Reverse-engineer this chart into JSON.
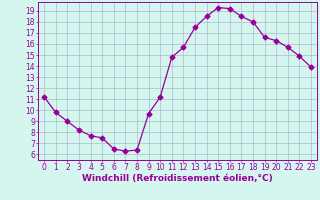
{
  "x": [
    0,
    1,
    2,
    3,
    4,
    5,
    6,
    7,
    8,
    9,
    10,
    11,
    12,
    13,
    14,
    15,
    16,
    17,
    18,
    19,
    20,
    21,
    22,
    23
  ],
  "y": [
    11.2,
    9.8,
    9.0,
    8.2,
    7.7,
    7.5,
    6.5,
    6.3,
    6.4,
    9.7,
    11.2,
    14.8,
    15.7,
    17.5,
    18.5,
    19.3,
    19.2,
    18.5,
    18.0,
    16.6,
    16.3,
    15.7,
    14.9,
    13.9
  ],
  "line_color": "#990099",
  "marker": "D",
  "marker_size": 2.5,
  "bg_color": "#d5f5ef",
  "grid_color": "#aabbcc",
  "xlabel": "Windchill (Refroidissement éolien,°C)",
  "ylabel_ticks": [
    6,
    7,
    8,
    9,
    10,
    11,
    12,
    13,
    14,
    15,
    16,
    17,
    18,
    19
  ],
  "xlim": [
    -0.5,
    23.5
  ],
  "ylim": [
    5.5,
    19.8
  ],
  "xlabel_fontsize": 6.5,
  "tick_fontsize": 5.5
}
